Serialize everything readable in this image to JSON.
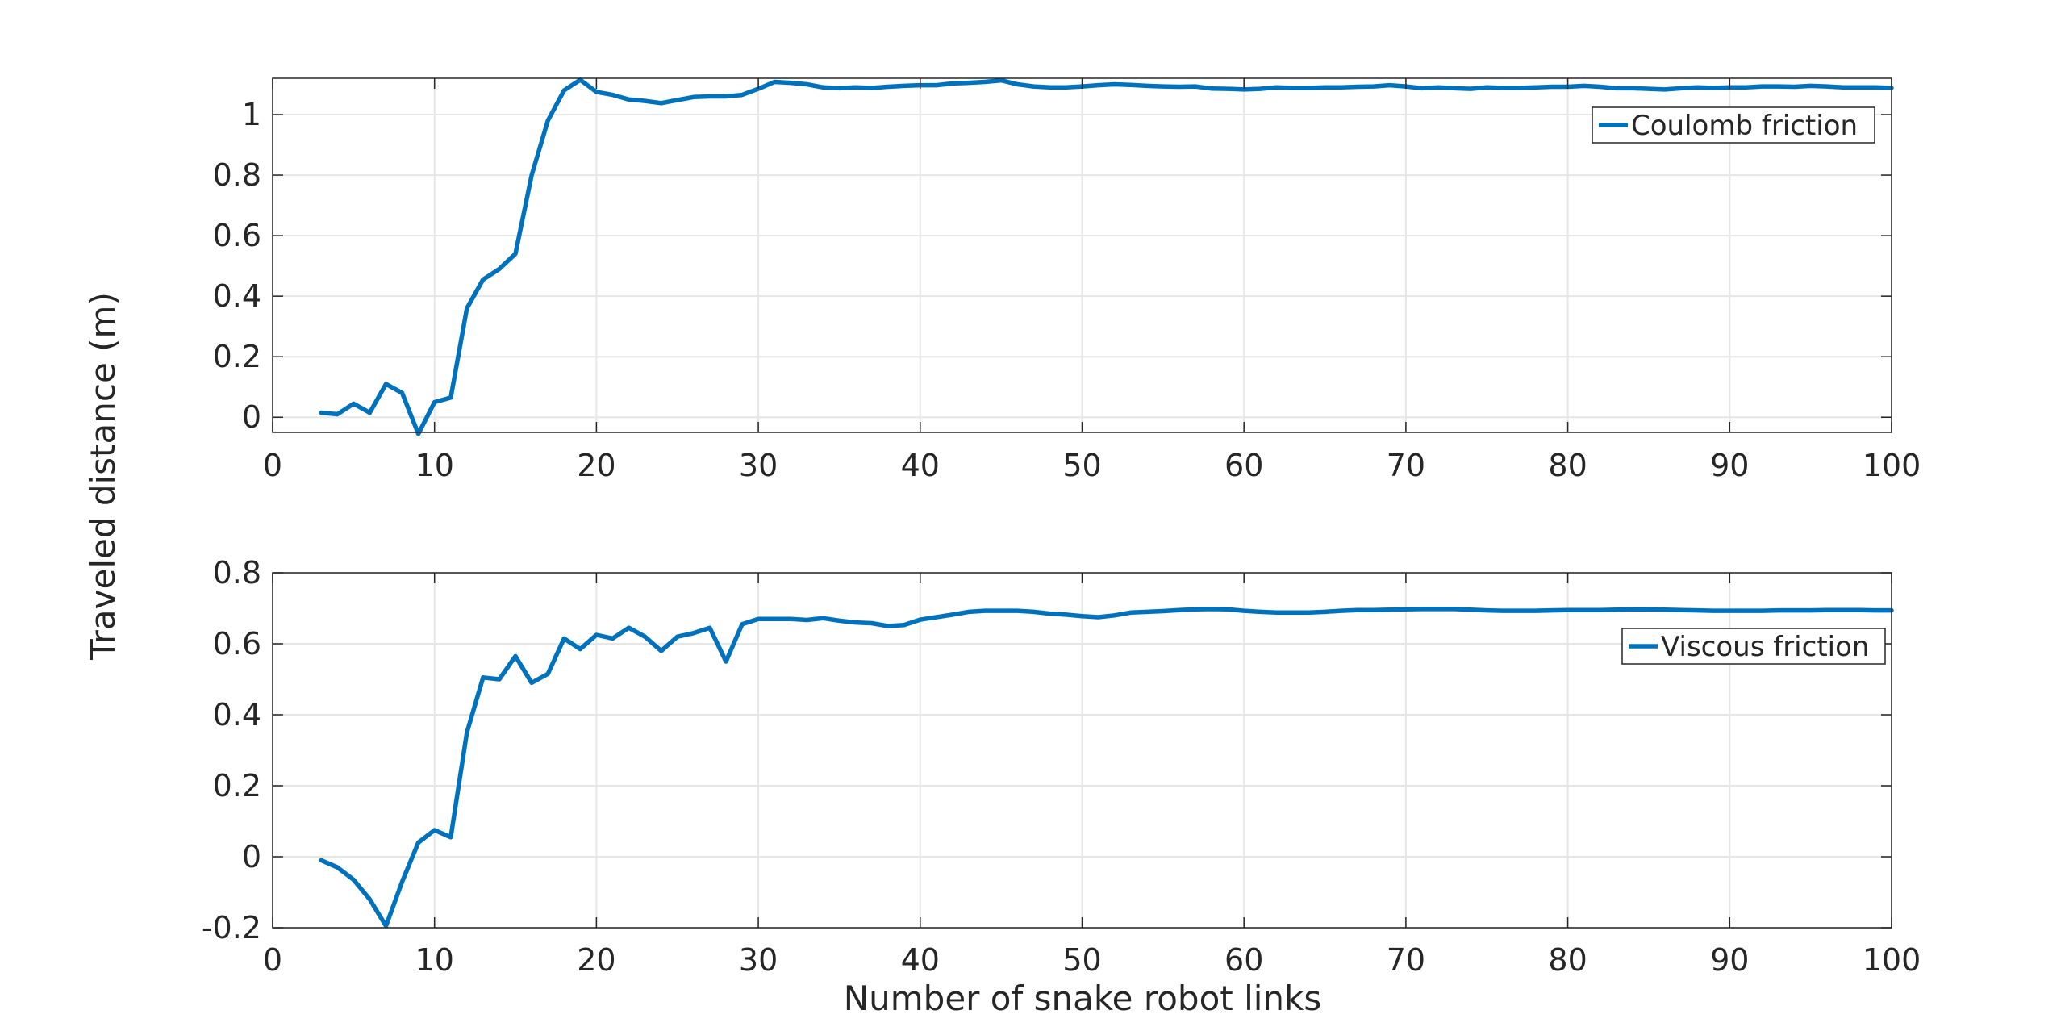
{
  "figure": {
    "ylabel": "Traveled distance (m)",
    "xlabel": "Number of snake robot links",
    "line_color": "#0072BD",
    "axes_color": "#262626",
    "grid_color": "#e6e6e6",
    "background": "#ffffff"
  },
  "chart_data": [
    {
      "type": "line",
      "xlim": [
        0,
        100
      ],
      "ylim": [
        -0.05,
        1.12
      ],
      "xticks": [
        0,
        10,
        20,
        30,
        40,
        50,
        60,
        70,
        80,
        90,
        100
      ],
      "yticks": [
        0,
        0.2,
        0.4,
        0.6,
        0.8,
        1
      ],
      "ytick_labels": [
        "0",
        "0.2",
        "0.4",
        "0.6",
        "0.8",
        "1"
      ],
      "grid": true,
      "legend_position": "top-right",
      "series": [
        {
          "name": "Coulomb friction",
          "x": [
            3,
            4,
            5,
            6,
            7,
            8,
            9,
            10,
            11,
            12,
            13,
            14,
            15,
            16,
            17,
            18,
            19,
            20,
            21,
            22,
            23,
            24,
            25,
            26,
            27,
            28,
            29,
            30,
            31,
            32,
            33,
            34,
            35,
            36,
            37,
            38,
            39,
            40,
            41,
            42,
            43,
            44,
            45,
            46,
            47,
            48,
            49,
            50,
            51,
            52,
            53,
            54,
            55,
            56,
            57,
            58,
            59,
            60,
            61,
            62,
            63,
            64,
            65,
            66,
            67,
            68,
            69,
            70,
            71,
            72,
            73,
            74,
            75,
            76,
            77,
            78,
            79,
            80,
            81,
            82,
            83,
            84,
            85,
            86,
            87,
            88,
            89,
            90,
            91,
            92,
            93,
            94,
            95,
            96,
            97,
            98,
            99,
            100
          ],
          "y": [
            0.015,
            0.01,
            0.045,
            0.015,
            0.11,
            0.08,
            -0.055,
            0.05,
            0.065,
            0.36,
            0.455,
            0.49,
            0.54,
            0.8,
            0.98,
            1.08,
            1.115,
            1.075,
            1.065,
            1.05,
            1.045,
            1.038,
            1.048,
            1.058,
            1.06,
            1.06,
            1.065,
            1.085,
            1.108,
            1.105,
            1.1,
            1.09,
            1.087,
            1.09,
            1.088,
            1.092,
            1.095,
            1.097,
            1.097,
            1.103,
            1.105,
            1.108,
            1.113,
            1.1,
            1.093,
            1.09,
            1.09,
            1.093,
            1.097,
            1.1,
            1.098,
            1.095,
            1.093,
            1.092,
            1.093,
            1.086,
            1.085,
            1.083,
            1.085,
            1.09,
            1.088,
            1.088,
            1.09,
            1.09,
            1.092,
            1.093,
            1.097,
            1.093,
            1.087,
            1.09,
            1.087,
            1.085,
            1.09,
            1.088,
            1.088,
            1.09,
            1.092,
            1.092,
            1.095,
            1.092,
            1.087,
            1.087,
            1.085,
            1.083,
            1.087,
            1.09,
            1.088,
            1.09,
            1.09,
            1.093,
            1.093,
            1.092,
            1.095,
            1.093,
            1.09,
            1.09,
            1.09,
            1.088
          ]
        }
      ]
    },
    {
      "type": "line",
      "xlim": [
        0,
        100
      ],
      "ylim": [
        -0.2,
        0.8
      ],
      "xticks": [
        0,
        10,
        20,
        30,
        40,
        50,
        60,
        70,
        80,
        90,
        100
      ],
      "yticks": [
        -0.2,
        0,
        0.2,
        0.4,
        0.6,
        0.8
      ],
      "ytick_labels": [
        "-0.2",
        "0",
        "0.2",
        "0.4",
        "0.6",
        "0.8"
      ],
      "grid": true,
      "legend_position": "top-right",
      "series": [
        {
          "name": "Viscous friction",
          "x": [
            3,
            4,
            5,
            6,
            7,
            8,
            9,
            10,
            11,
            12,
            13,
            14,
            15,
            16,
            17,
            18,
            19,
            20,
            21,
            22,
            23,
            24,
            25,
            26,
            27,
            28,
            29,
            30,
            31,
            32,
            33,
            34,
            35,
            36,
            37,
            38,
            39,
            40,
            41,
            42,
            43,
            44,
            45,
            46,
            47,
            48,
            49,
            50,
            51,
            52,
            53,
            54,
            55,
            56,
            57,
            58,
            59,
            60,
            61,
            62,
            63,
            64,
            65,
            66,
            67,
            68,
            69,
            70,
            71,
            72,
            73,
            74,
            75,
            76,
            77,
            78,
            79,
            80,
            81,
            82,
            83,
            84,
            85,
            86,
            87,
            88,
            89,
            90,
            91,
            92,
            93,
            94,
            95,
            96,
            97,
            98,
            99,
            100
          ],
          "y": [
            -0.01,
            -0.03,
            -0.065,
            -0.12,
            -0.195,
            -0.07,
            0.04,
            0.075,
            0.055,
            0.35,
            0.505,
            0.5,
            0.565,
            0.49,
            0.515,
            0.615,
            0.585,
            0.625,
            0.615,
            0.645,
            0.62,
            0.58,
            0.62,
            0.63,
            0.645,
            0.55,
            0.655,
            0.67,
            0.67,
            0.67,
            0.667,
            0.672,
            0.665,
            0.66,
            0.658,
            0.65,
            0.653,
            0.668,
            0.675,
            0.682,
            0.69,
            0.693,
            0.693,
            0.693,
            0.69,
            0.685,
            0.682,
            0.678,
            0.675,
            0.68,
            0.688,
            0.69,
            0.692,
            0.695,
            0.697,
            0.698,
            0.697,
            0.693,
            0.69,
            0.688,
            0.688,
            0.688,
            0.69,
            0.693,
            0.695,
            0.695,
            0.696,
            0.697,
            0.698,
            0.698,
            0.698,
            0.696,
            0.694,
            0.693,
            0.693,
            0.693,
            0.694,
            0.695,
            0.695,
            0.695,
            0.696,
            0.697,
            0.697,
            0.696,
            0.695,
            0.694,
            0.693,
            0.693,
            0.693,
            0.693,
            0.694,
            0.694,
            0.694,
            0.695,
            0.695,
            0.695,
            0.694,
            0.694
          ]
        }
      ]
    }
  ]
}
